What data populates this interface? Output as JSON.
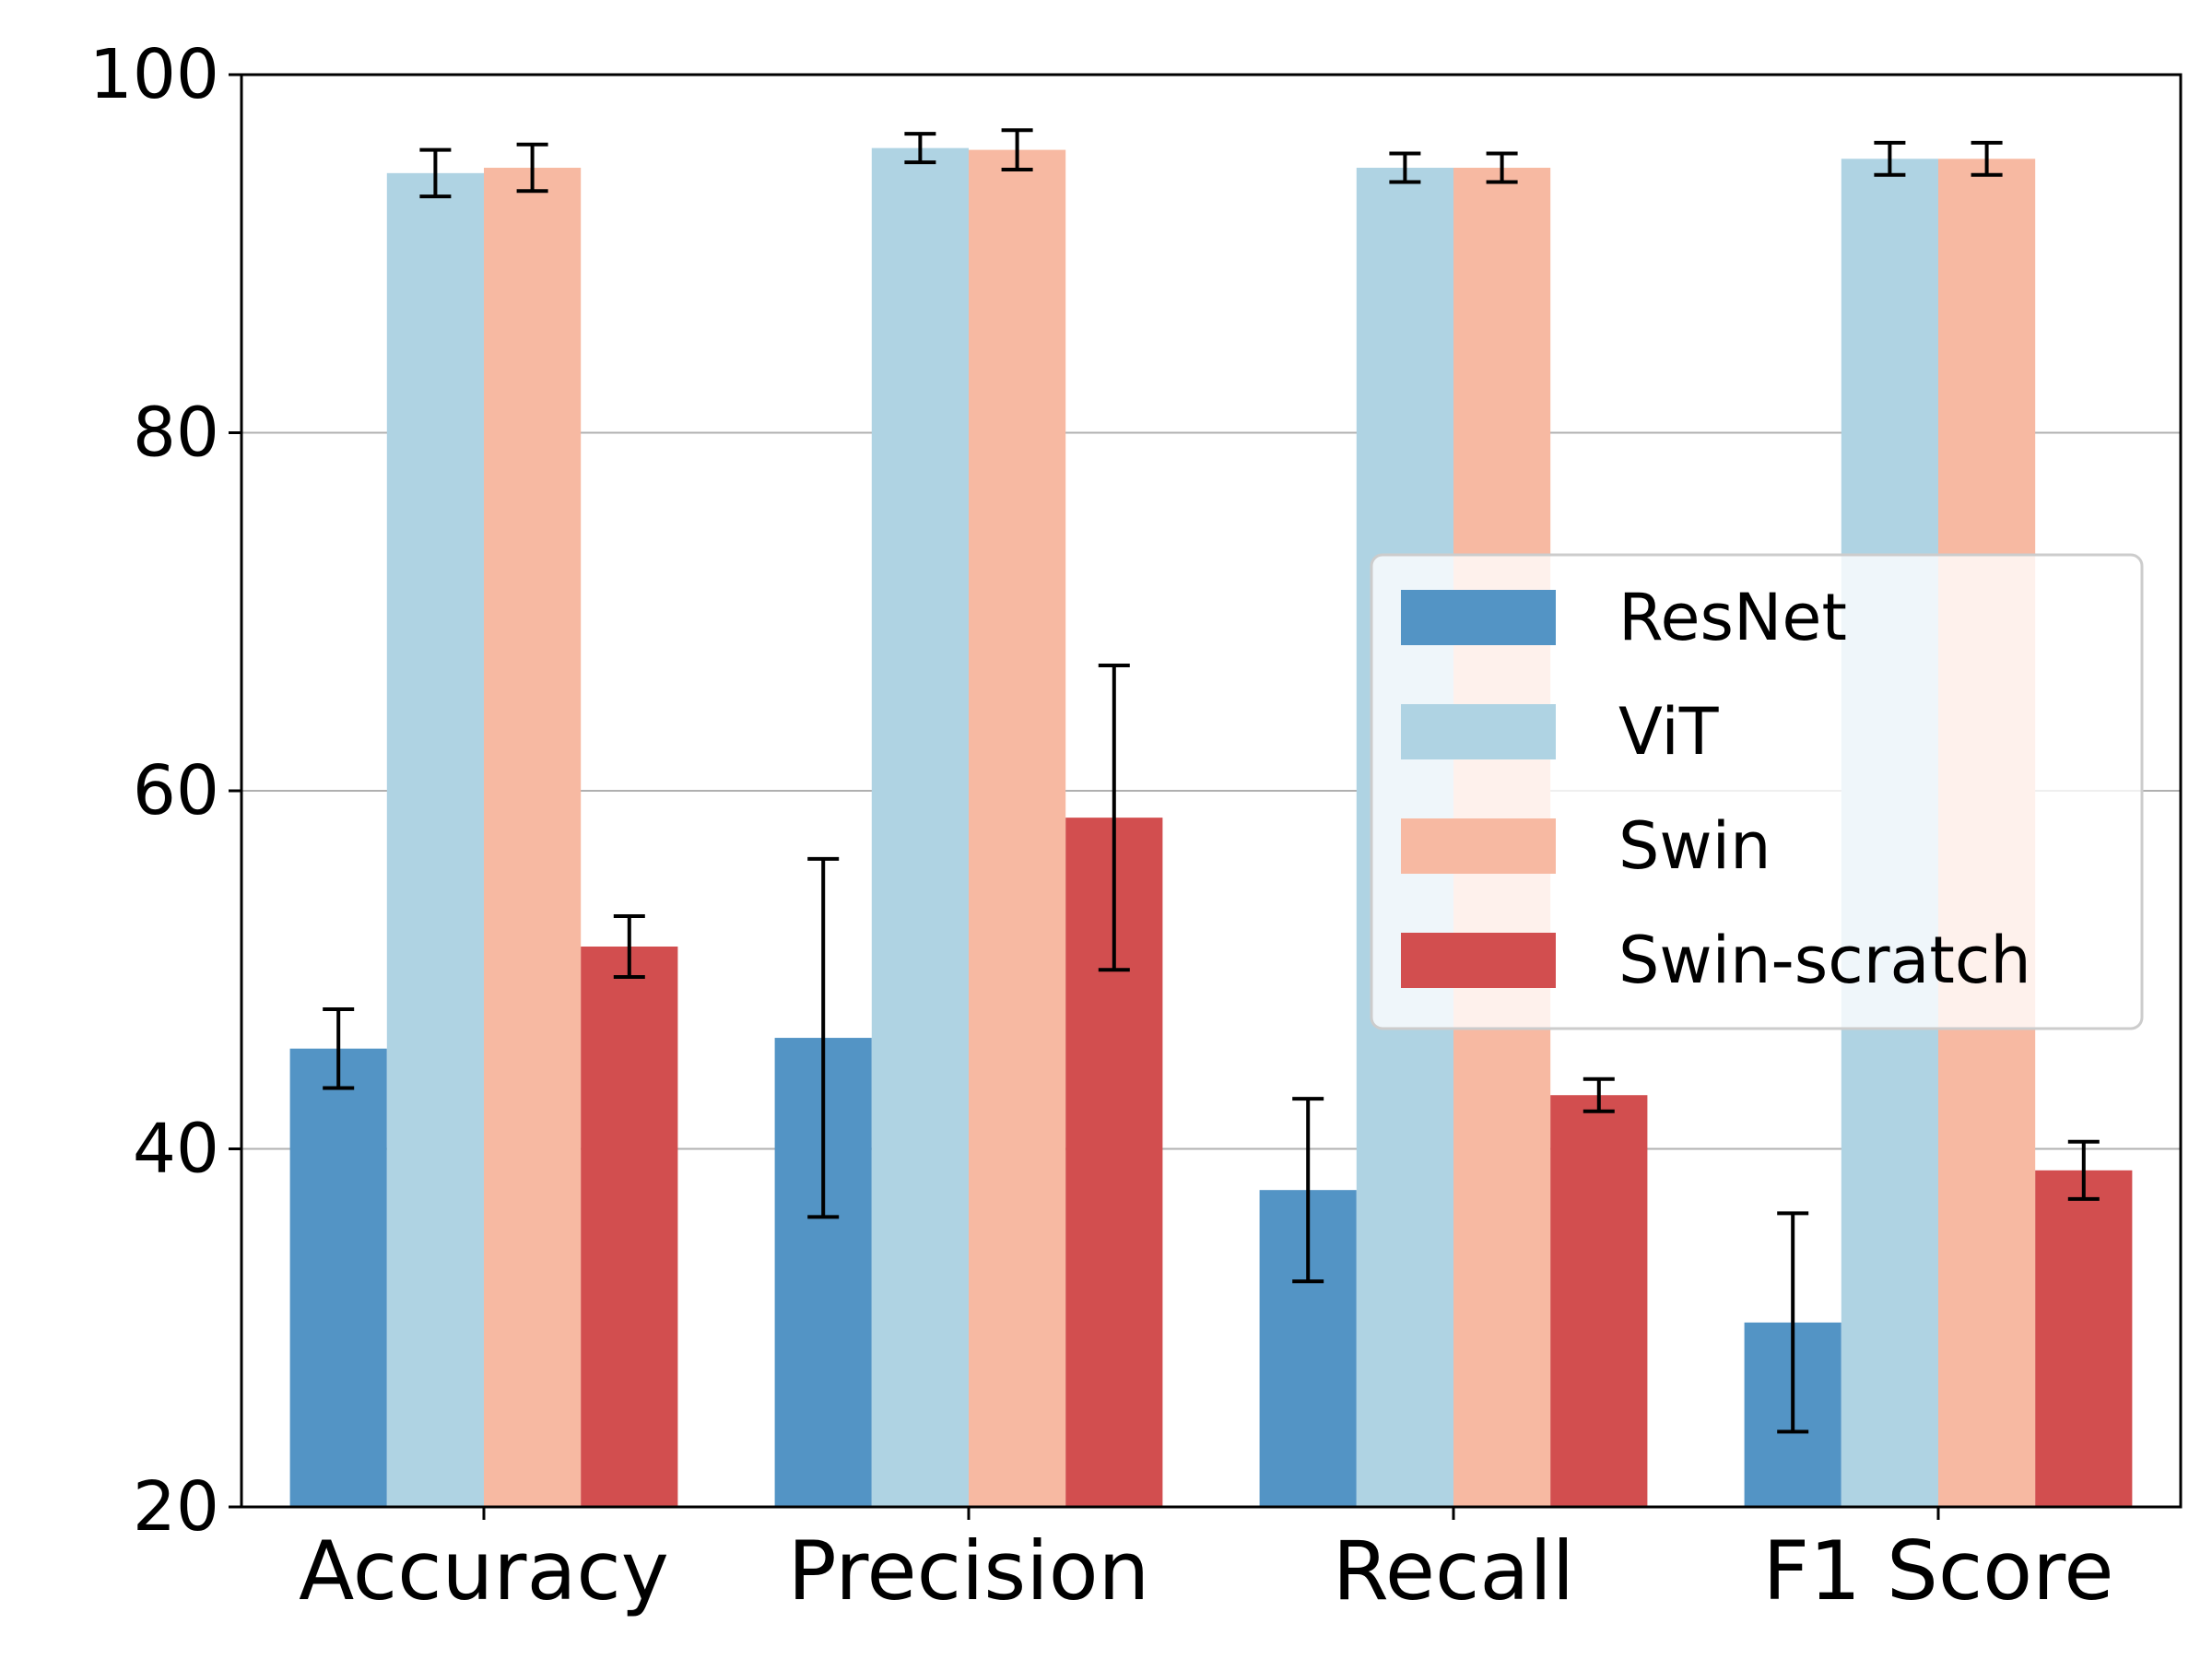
{
  "chart_data": {
    "type": "bar",
    "title": "",
    "xlabel": "",
    "ylabel": "",
    "categories": [
      "Accuracy",
      "Precision",
      "Recall",
      "F1 Score"
    ],
    "ylim": [
      20,
      100
    ],
    "yticks": [
      20,
      40,
      60,
      80,
      100
    ],
    "grid": "y-major",
    "legend_position": "center-right",
    "series": [
      {
        "name": "ResNet",
        "color": "#5394c5",
        "values": [
          45.6,
          46.2,
          37.7,
          30.3
        ],
        "errors": [
          2.2,
          10.0,
          5.1,
          6.1
        ]
      },
      {
        "name": "ViT",
        "color": "#afd3e3",
        "values": [
          94.5,
          95.9,
          94.8,
          95.3
        ],
        "errors": [
          1.3,
          0.8,
          0.8,
          0.9
        ]
      },
      {
        "name": "Swin",
        "color": "#f7b9a2",
        "values": [
          94.8,
          95.8,
          94.8,
          95.3
        ],
        "errors": [
          1.3,
          1.1,
          0.8,
          0.9
        ]
      },
      {
        "name": "Swin-scratch",
        "color": "#d24e4f",
        "values": [
          51.3,
          58.5,
          43.0,
          38.8
        ],
        "errors": [
          1.7,
          8.5,
          0.9,
          1.6
        ]
      }
    ]
  }
}
